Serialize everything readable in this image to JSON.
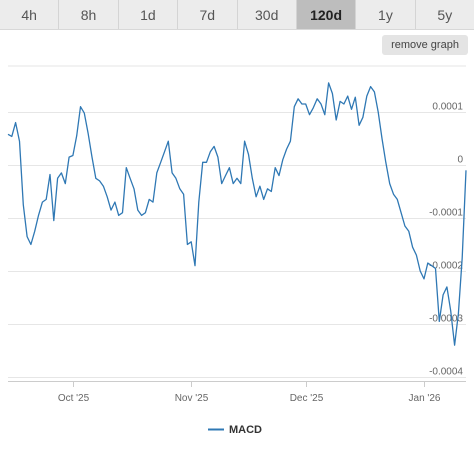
{
  "range_tabs": [
    {
      "label": "4h",
      "active": false
    },
    {
      "label": "8h",
      "active": false
    },
    {
      "label": "1d",
      "active": false
    },
    {
      "label": "7d",
      "active": false
    },
    {
      "label": "30d",
      "active": false
    },
    {
      "label": "120d",
      "active": true
    },
    {
      "label": "1y",
      "active": false
    },
    {
      "label": "5y",
      "active": false
    }
  ],
  "remove_graph_label": "remove graph",
  "colors": {
    "line": "#2f78b4",
    "grid": "#e6e6e6"
  },
  "chart_data": {
    "type": "line",
    "title": "",
    "xlabel": "",
    "ylabel": "",
    "grid": true,
    "legend": "bottom-center",
    "x_range": [
      "2025-09-14",
      "2026-01-12"
    ],
    "ylim": [
      -0.0004,
      0.0001
    ],
    "y_ticks": [
      {
        "value": 0.0001,
        "label": "0.0001"
      },
      {
        "value": 0,
        "label": "0"
      },
      {
        "value": -0.0001,
        "label": "-0.0001"
      },
      {
        "value": -0.0002,
        "label": "-0.0002"
      },
      {
        "value": -0.0003,
        "label": "-0.0003"
      },
      {
        "value": -0.0004,
        "label": "-0.0004"
      }
    ],
    "x_ticks": [
      {
        "value": "2025-10-01",
        "label": "Oct '25"
      },
      {
        "value": "2025-11-01",
        "label": "Nov '25"
      },
      {
        "value": "2025-12-01",
        "label": "Dec '25"
      },
      {
        "value": "2026-01-01",
        "label": "Jan '26"
      }
    ],
    "series": [
      {
        "name": "MACD",
        "x": [
          "2025-09-14",
          "2025-09-15",
          "2025-09-16",
          "2025-09-17",
          "2025-09-18",
          "2025-09-19",
          "2025-09-20",
          "2025-09-21",
          "2025-09-22",
          "2025-09-23",
          "2025-09-24",
          "2025-09-25",
          "2025-09-26",
          "2025-09-27",
          "2025-09-28",
          "2025-09-29",
          "2025-09-30",
          "2025-10-01",
          "2025-10-02",
          "2025-10-03",
          "2025-10-04",
          "2025-10-05",
          "2025-10-06",
          "2025-10-07",
          "2025-10-08",
          "2025-10-09",
          "2025-10-10",
          "2025-10-11",
          "2025-10-12",
          "2025-10-13",
          "2025-10-14",
          "2025-10-15",
          "2025-10-16",
          "2025-10-17",
          "2025-10-18",
          "2025-10-19",
          "2025-10-20",
          "2025-10-21",
          "2025-10-22",
          "2025-10-23",
          "2025-10-24",
          "2025-10-25",
          "2025-10-26",
          "2025-10-27",
          "2025-10-28",
          "2025-10-29",
          "2025-10-30",
          "2025-10-31",
          "2025-11-01",
          "2025-11-02",
          "2025-11-03",
          "2025-11-04",
          "2025-11-05",
          "2025-11-06",
          "2025-11-07",
          "2025-11-08",
          "2025-11-09",
          "2025-11-10",
          "2025-11-11",
          "2025-11-12",
          "2025-11-13",
          "2025-11-14",
          "2025-11-15",
          "2025-11-16",
          "2025-11-17",
          "2025-11-18",
          "2025-11-19",
          "2025-11-20",
          "2025-11-21",
          "2025-11-22",
          "2025-11-23",
          "2025-11-24",
          "2025-11-25",
          "2025-11-26",
          "2025-11-27",
          "2025-11-28",
          "2025-11-29",
          "2025-11-30",
          "2025-12-01",
          "2025-12-02",
          "2025-12-03",
          "2025-12-04",
          "2025-12-05",
          "2025-12-06",
          "2025-12-07",
          "2025-12-08",
          "2025-12-09",
          "2025-12-10",
          "2025-12-11",
          "2025-12-12",
          "2025-12-13",
          "2025-12-14",
          "2025-12-15",
          "2025-12-16",
          "2025-12-17",
          "2025-12-18",
          "2025-12-19",
          "2025-12-20",
          "2025-12-21",
          "2025-12-22",
          "2025-12-23",
          "2025-12-24",
          "2025-12-25",
          "2025-12-26",
          "2025-12-27",
          "2025-12-28",
          "2025-12-29",
          "2025-12-30",
          "2025-12-31",
          "2026-01-01",
          "2026-01-02",
          "2026-01-03",
          "2026-01-04",
          "2026-01-05",
          "2026-01-06",
          "2026-01-07",
          "2026-01-08",
          "2026-01-09",
          "2026-01-10",
          "2026-01-11",
          "2026-01-12"
        ],
        "y": [
          5.8e-05,
          5.4e-05,
          8e-05,
          4.5e-05,
          -7.5e-05,
          -0.000135,
          -0.00015,
          -0.000125,
          -9.5e-05,
          -7e-05,
          -6.5e-05,
          -1.8e-05,
          -0.000105,
          -2.5e-05,
          -1.5e-05,
          -3.5e-05,
          1.5e-05,
          1.8e-05,
          5.5e-05,
          0.00011,
          9.8e-05,
          6e-05,
          1.5e-05,
          -2.5e-05,
          -3e-05,
          -4e-05,
          -6e-05,
          -8.5e-05,
          -7e-05,
          -9.5e-05,
          -9e-05,
          -5e-06,
          -2.5e-05,
          -4.5e-05,
          -8.5e-05,
          -9.5e-05,
          -9e-05,
          -6.5e-05,
          -7e-05,
          -1.5e-05,
          5e-06,
          2.5e-05,
          4.5e-05,
          -1.5e-05,
          -2.5e-05,
          -4.5e-05,
          -5.5e-05,
          -0.00015,
          -0.000145,
          -0.00019,
          -7e-05,
          5e-06,
          5e-06,
          2.5e-05,
          3.5e-05,
          1.5e-05,
          -3.5e-05,
          -2e-05,
          -5e-06,
          -3.5e-05,
          -2.5e-05,
          -3.5e-05,
          4.5e-05,
          2e-05,
          -2.5e-05,
          -6e-05,
          -4e-05,
          -6.5e-05,
          -4.5e-05,
          -5e-05,
          -5e-06,
          -2e-05,
          1e-05,
          3e-05,
          4.5e-05,
          0.00011,
          0.000125,
          0.000115,
          0.000115,
          9.5e-05,
          0.000108,
          0.000125,
          0.000115,
          9.5e-05,
          0.000155,
          0.000135,
          8.5e-05,
          0.00012,
          0.000115,
          0.00013,
          0.000105,
          0.000128,
          7.5e-05,
          9e-05,
          0.00013,
          0.000148,
          0.000138,
          0.0001,
          5e-05,
          5e-06,
          -3.5e-05,
          -5.5e-05,
          -6.5e-05,
          -9e-05,
          -0.000115,
          -0.000125,
          -0.000155,
          -0.00017,
          -0.0002,
          -0.000215,
          -0.000185,
          -0.00019,
          -0.000195,
          -0.000295,
          -0.000245,
          -0.00023,
          -0.000275,
          -0.00034,
          -0.00028,
          -0.000175,
          -1e-05
        ]
      }
    ]
  }
}
